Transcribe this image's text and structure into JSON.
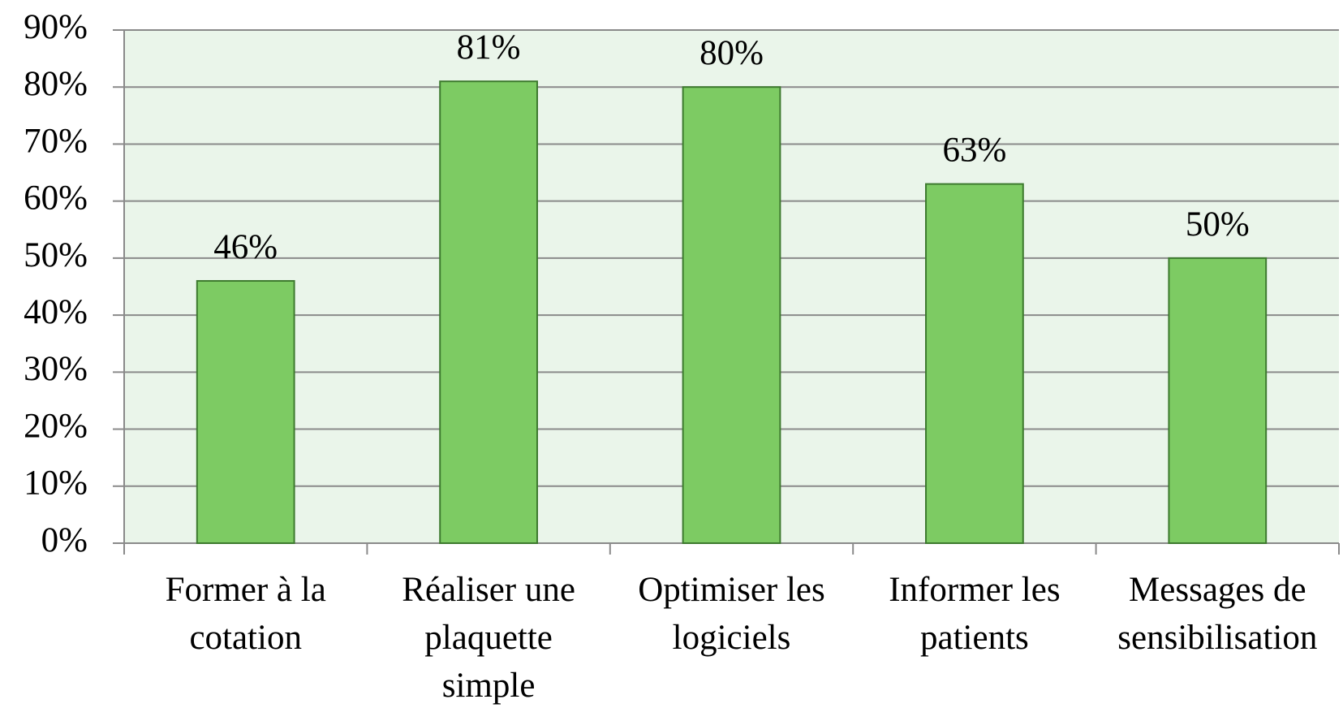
{
  "chart_data": {
    "type": "bar",
    "categories": [
      [
        "Former à la",
        "cotation"
      ],
      [
        "Réaliser une",
        "plaquette",
        "simple"
      ],
      [
        "Optimiser les",
        "logiciels"
      ],
      [
        "Informer les",
        "patients"
      ],
      [
        "Messages de",
        "sensibilisation"
      ]
    ],
    "values": [
      46,
      81,
      80,
      63,
      50
    ],
    "value_labels": [
      "46%",
      "81%",
      "80%",
      "63%",
      "50%"
    ],
    "color": "#7dcb63",
    "ylim": [
      0,
      90
    ],
    "yticks": [
      {
        "value": 0,
        "label": "0%"
      },
      {
        "value": 10,
        "label": "10%"
      },
      {
        "value": 20,
        "label": "20%"
      },
      {
        "value": 30,
        "label": "30%"
      },
      {
        "value": 40,
        "label": "40%"
      },
      {
        "value": 50,
        "label": "50%"
      },
      {
        "value": 60,
        "label": "60%"
      },
      {
        "value": 70,
        "label": "70%"
      },
      {
        "value": 80,
        "label": "80%"
      },
      {
        "value": 90,
        "label": "90%"
      }
    ],
    "grid": true
  }
}
